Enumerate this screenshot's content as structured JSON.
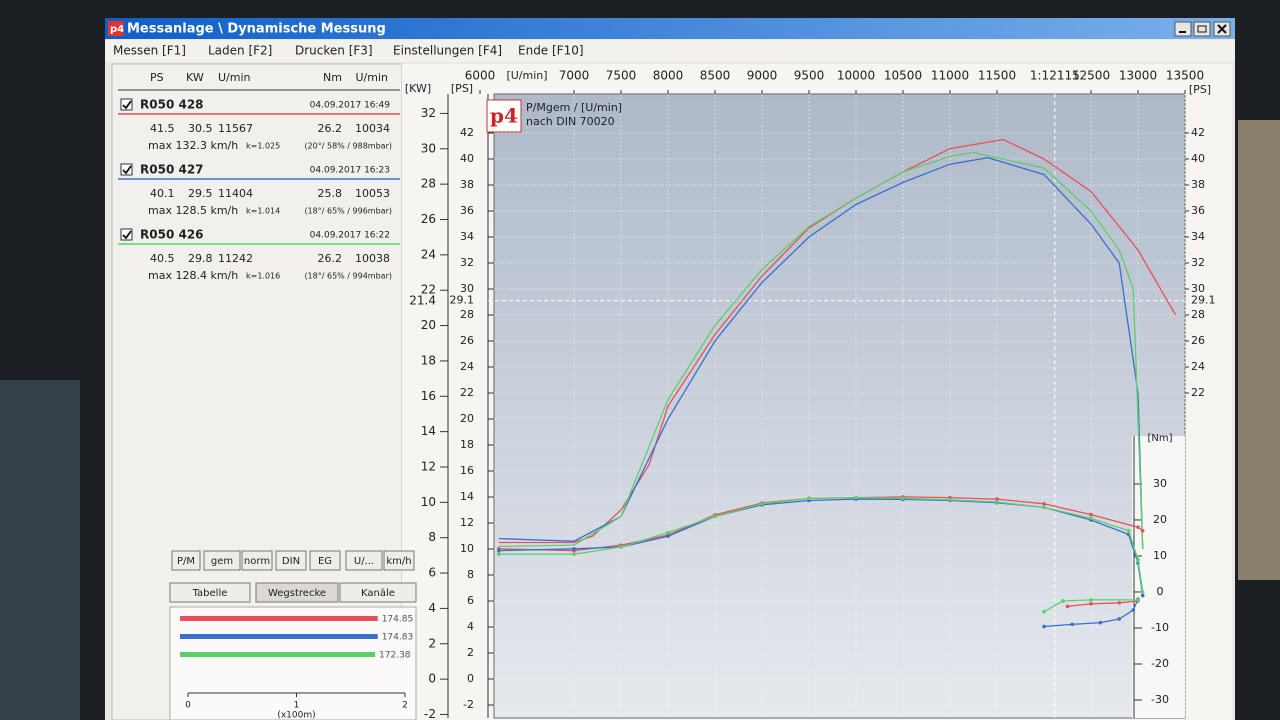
{
  "window": {
    "title": "Messanlage \\ Dynamische Messung",
    "logo": "p4"
  },
  "menu": [
    "Messen [F1]",
    "Laden [F2]",
    "Drucken [F3]",
    "Einstellungen [F4]",
    "Ende [F10]"
  ],
  "panel": {
    "header": [
      "PS",
      "KW",
      "U/min",
      "Nm",
      "U/min"
    ],
    "runs": [
      {
        "name": "R050 428",
        "date": "04.09.2017 16:49",
        "ps": 41.5,
        "kw": 30.5,
        "rpm": 11567,
        "nm": 26.2,
        "nm_rpm": 10034,
        "vmax": "max 132.3 km/h",
        "k": "k=1.025",
        "conditions": "(20°/ 58% / 988mbar)",
        "color": "#e8505a"
      },
      {
        "name": "R050 427",
        "date": "04.09.2017 16:23",
        "ps": 40.1,
        "kw": 29.5,
        "rpm": 11404,
        "nm": 25.8,
        "nm_rpm": 10053,
        "vmax": "max 128.5 km/h",
        "k": "k=1.014",
        "conditions": "(18°/ 65% / 996mbar)",
        "color": "#3a6fd0"
      },
      {
        "name": "R050 426",
        "date": "04.09.2017 16:22",
        "ps": 40.5,
        "kw": 29.8,
        "rpm": 11242,
        "nm": 26.2,
        "nm_rpm": 10038,
        "vmax": "max 128.4 km/h",
        "k": "k=1.016",
        "conditions": "(18°/ 65% / 994mbar)",
        "color": "#5ccf6a"
      }
    ],
    "buttons_row1": [
      "P/M",
      "gem",
      "norm",
      "DIN",
      "EG",
      "U/...",
      "km/h"
    ],
    "buttons_row2": [
      "Tabelle",
      "Wegstrecke",
      "Kanäle"
    ]
  },
  "chart_data": [
    {
      "type": "line",
      "title": "P/Mgem / [U/min]",
      "subtitle": "nach DIN 70020",
      "x_label": "[U/min]",
      "y_label": "[PS]",
      "y2_label": "[Nm]",
      "kw_label": "[KW]",
      "xlim": [
        6000,
        13500
      ],
      "xticks": [
        6000,
        7000,
        7500,
        8000,
        8500,
        9000,
        9500,
        10000,
        10500,
        11000,
        11500,
        12500,
        13000,
        13500
      ],
      "ylim": [
        -3,
        45
      ],
      "yticks": [
        -2,
        0,
        2,
        4,
        6,
        8,
        10,
        12,
        14,
        16,
        18,
        20,
        22,
        24,
        26,
        28,
        30,
        32,
        34,
        36,
        38,
        40,
        42
      ],
      "y_right_ticks": [
        22,
        24,
        26,
        28,
        30,
        32,
        34,
        36,
        38,
        40,
        42
      ],
      "kwlim": [
        -2.2,
        33.1
      ],
      "kwticks": [
        -2,
        0,
        2,
        4,
        6,
        8,
        10,
        12,
        14,
        16,
        18,
        20,
        22,
        24,
        26,
        28,
        30,
        32
      ],
      "y2lim": [
        -35,
        138.3
      ],
      "y2ticks": [
        -30,
        -20,
        -10,
        0,
        10,
        20,
        30
      ],
      "grid": true,
      "cursor": {
        "x": 12115,
        "x_label": "1:12115",
        "ps": 29.1,
        "kw": 21.4
      },
      "series": [
        {
          "color": "#e8505a",
          "axis": "y",
          "x": [
            6200,
            7000,
            7200,
            7500,
            7800,
            8000,
            8500,
            9000,
            9500,
            10000,
            10500,
            11000,
            11567,
            12000,
            12500,
            13000,
            13400
          ],
          "values": [
            10.5,
            10.5,
            11,
            13,
            16.5,
            21,
            26.5,
            31,
            34.7,
            37,
            39,
            40.8,
            41.5,
            40,
            37.5,
            33,
            28
          ]
        },
        {
          "color": "#3a6fd0",
          "axis": "y",
          "x": [
            6200,
            7000,
            7500,
            8000,
            8500,
            9000,
            9500,
            10000,
            10500,
            11000,
            11404,
            12000,
            12500,
            12800,
            13000,
            13050
          ],
          "values": [
            10.8,
            10.6,
            12.5,
            20,
            26,
            30.5,
            34,
            36.5,
            38.2,
            39.6,
            40.1,
            38.8,
            35,
            32,
            22,
            10
          ]
        },
        {
          "color": "#5ccf6a",
          "axis": "y",
          "x": [
            6200,
            7000,
            7500,
            8000,
            8500,
            9000,
            9500,
            10000,
            10500,
            11000,
            11242,
            12000,
            12500,
            12800,
            12950,
            13050
          ],
          "values": [
            10.2,
            10.3,
            12.5,
            21.5,
            27.2,
            31.5,
            34.8,
            37,
            39,
            40.2,
            40.5,
            39.3,
            36,
            33,
            30,
            10
          ]
        },
        {
          "color": "#e8505a",
          "axis": "y2",
          "x": [
            6200,
            7000,
            7500,
            8000,
            8500,
            9000,
            9500,
            10000,
            10500,
            11000,
            11500,
            12000,
            12500,
            13000,
            13050,
            null,
            12250,
            12500,
            12800,
            13000
          ],
          "values": [
            12,
            11.5,
            13,
            15.8,
            21.4,
            24.7,
            26,
            26.2,
            26.4,
            26.2,
            25.8,
            24.5,
            21.5,
            18,
            17,
            null,
            -4,
            -3.3,
            -3,
            -2.5
          ]
        },
        {
          "color": "#3a6fd0",
          "axis": "y2",
          "x": [
            6200,
            7000,
            7500,
            8000,
            8500,
            9000,
            9500,
            10000,
            10500,
            11000,
            11500,
            12000,
            12500,
            12900,
            13000,
            13050,
            null,
            12000,
            12300,
            12600,
            12800,
            12950,
            13000
          ],
          "values": [
            11.5,
            12,
            12.5,
            15.5,
            21,
            24.2,
            25.4,
            25.8,
            25.7,
            25.4,
            24.8,
            23.5,
            20,
            16,
            8,
            -1,
            null,
            -9.6,
            -9,
            -8.5,
            -7.5,
            -5,
            -2
          ]
        },
        {
          "color": "#5ccf6a",
          "axis": "y2",
          "x": [
            6200,
            7000,
            7500,
            8000,
            8500,
            9000,
            9500,
            10000,
            10500,
            11000,
            11500,
            12000,
            12500,
            12900,
            13000,
            13050,
            null,
            12000,
            12200,
            12500,
            13000
          ],
          "values": [
            10.5,
            10.5,
            12.5,
            16.5,
            21,
            24.5,
            26,
            26.2,
            26,
            25.6,
            25,
            23.5,
            20.5,
            17,
            9,
            0,
            null,
            -5.5,
            -2.5,
            -2.2,
            -2.2
          ]
        }
      ]
    },
    {
      "type": "bar",
      "values": [
        174.85,
        174.83,
        172.38
      ],
      "colors": [
        "#e8505a",
        "#3a6fd0",
        "#5ccf6a"
      ],
      "xlim": [
        0,
        200
      ],
      "xticks": [
        {
          "value": 0,
          "label": "0"
        },
        {
          "value": 100,
          "label": "1"
        },
        {
          "value": 200,
          "label": "2"
        }
      ],
      "x_label": "(x100m)"
    }
  ]
}
